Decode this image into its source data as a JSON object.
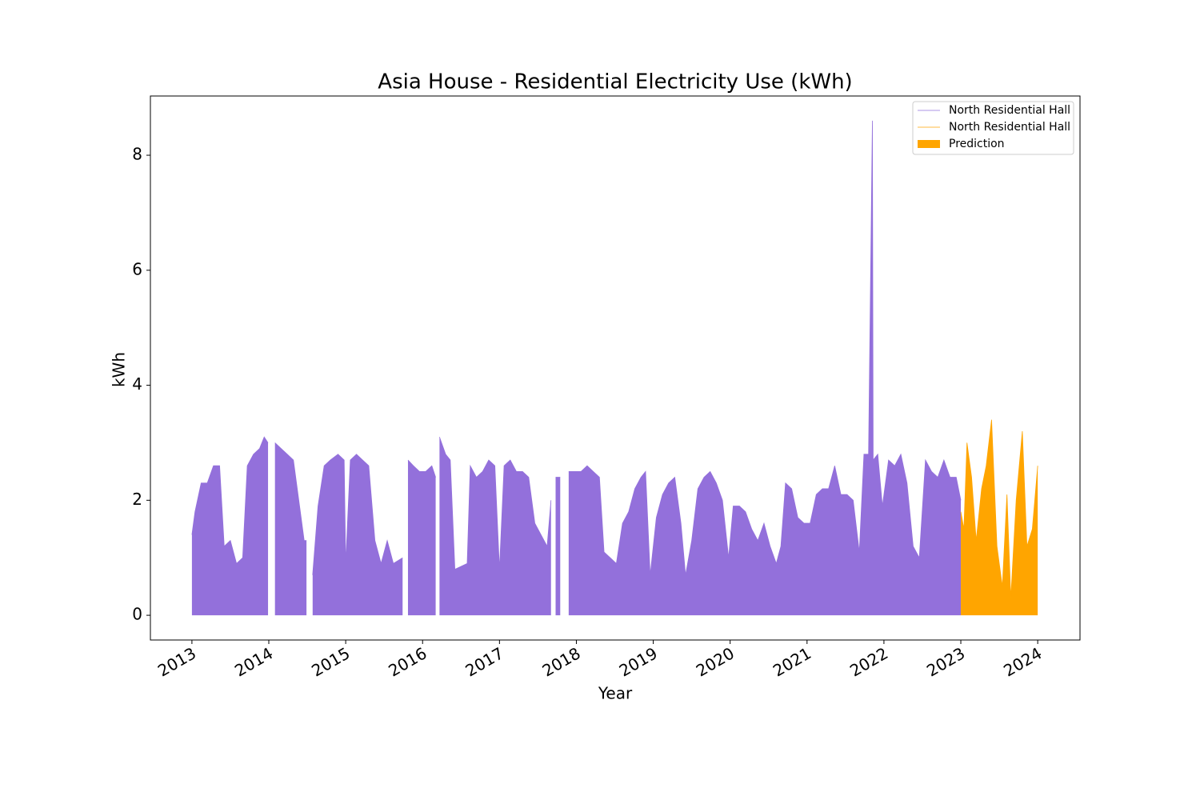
{
  "chart_data": {
    "type": "area",
    "title": "Asia House - Residential Electricity Use (kWh)",
    "xlabel": "Year",
    "ylabel": "kWh",
    "xlim": [
      2012.46,
      2024.55
    ],
    "xticks": [
      2013,
      2014,
      2015,
      2016,
      2017,
      2018,
      2019,
      2020,
      2021,
      2022,
      2023,
      2024
    ],
    "ylim": [
      -0.43,
      9.03
    ],
    "yticks": [
      0,
      2,
      4,
      6,
      8
    ],
    "legend": "upper right",
    "series": [
      {
        "name": "North Residential Hall",
        "color": "#9370db",
        "x": [
          2013.0,
          2013.04,
          2013.12,
          2013.2,
          2013.28,
          2013.36,
          2013.42,
          2013.5,
          2013.58,
          2013.66,
          2013.72,
          2013.8,
          2013.88,
          2013.94,
          2013.99,
          2014.03,
          2014.08,
          2014.16,
          2014.24,
          2014.32,
          2014.4,
          2014.46,
          2014.49,
          2014.53,
          2014.57,
          2014.64,
          2014.72,
          2014.8,
          2014.9,
          2014.98,
          2015.0,
          2015.06,
          2015.14,
          2015.22,
          2015.3,
          2015.38,
          2015.46,
          2015.54,
          2015.62,
          2015.74,
          2015.77,
          2015.81,
          2015.88,
          2015.96,
          2016.04,
          2016.12,
          2016.17,
          2016.19,
          2016.22,
          2016.3,
          2016.36,
          2016.42,
          2016.58,
          2016.62,
          2016.7,
          2016.78,
          2016.86,
          2016.94,
          2017.0,
          2017.06,
          2017.14,
          2017.22,
          2017.3,
          2017.38,
          2017.46,
          2017.54,
          2017.62,
          2017.67,
          2017.7,
          2017.73,
          2017.79,
          2017.85,
          2017.9,
          2017.98,
          2018.06,
          2018.14,
          2018.22,
          2018.3,
          2018.36,
          2018.44,
          2018.52,
          2018.6,
          2018.68,
          2018.76,
          2018.84,
          2018.9,
          2018.96,
          2019.04,
          2019.12,
          2019.2,
          2019.28,
          2019.36,
          2019.42,
          2019.5,
          2019.58,
          2019.66,
          2019.74,
          2019.82,
          2019.9,
          2019.98,
          2020.04,
          2020.12,
          2020.2,
          2020.28,
          2020.36,
          2020.44,
          2020.52,
          2020.6,
          2020.66,
          2020.72,
          2020.8,
          2020.88,
          2020.96,
          2021.04,
          2021.12,
          2021.2,
          2021.28,
          2021.36,
          2021.44,
          2021.52,
          2021.6,
          2021.68,
          2021.74,
          2021.8,
          2021.85,
          2021.86,
          2021.92,
          2021.98,
          2022.06,
          2022.14,
          2022.22,
          2022.3,
          2022.38,
          2022.46,
          2022.54,
          2022.62,
          2022.7,
          2022.78,
          2022.86,
          2022.94,
          2023.0
        ],
        "values": [
          1.4,
          1.8,
          2.3,
          2.3,
          2.6,
          2.6,
          1.2,
          1.3,
          0.9,
          1.0,
          2.6,
          2.8,
          2.9,
          3.1,
          3.0,
          null,
          3.0,
          2.9,
          2.8,
          2.7,
          1.9,
          1.3,
          1.3,
          null,
          0.7,
          1.9,
          2.6,
          2.7,
          2.8,
          2.7,
          0.9,
          2.7,
          2.8,
          2.7,
          2.6,
          1.3,
          0.9,
          1.3,
          0.9,
          1.0,
          null,
          2.7,
          2.6,
          2.5,
          2.5,
          2.6,
          2.4,
          null,
          3.1,
          2.8,
          2.7,
          0.8,
          0.9,
          2.6,
          2.4,
          2.5,
          2.7,
          2.6,
          0.8,
          2.6,
          2.7,
          2.5,
          2.5,
          2.4,
          1.6,
          1.4,
          1.2,
          2.0,
          null,
          2.4,
          2.4,
          null,
          2.5,
          2.5,
          2.5,
          2.6,
          2.5,
          2.4,
          1.1,
          1.0,
          0.9,
          1.6,
          1.8,
          2.2,
          2.4,
          2.5,
          0.7,
          1.7,
          2.1,
          2.3,
          2.4,
          1.6,
          0.7,
          1.3,
          2.2,
          2.4,
          2.5,
          2.3,
          2.0,
          1.0,
          1.9,
          1.9,
          1.8,
          1.5,
          1.3,
          1.6,
          1.2,
          0.9,
          1.2,
          2.3,
          2.2,
          1.7,
          1.6,
          1.6,
          2.1,
          2.2,
          2.2,
          2.6,
          2.1,
          2.1,
          2.0,
          1.1,
          2.8,
          2.8,
          8.6,
          2.7,
          2.8,
          1.9,
          2.7,
          2.6,
          2.8,
          2.3,
          1.2,
          1.0,
          2.7,
          2.5,
          2.4,
          2.7,
          2.4,
          2.4,
          2.0
        ]
      },
      {
        "name": "North Residential Hall",
        "color": "#ffa500",
        "x": [
          2023.0,
          2023.04,
          2023.08,
          2023.14,
          2023.2,
          2023.27,
          2023.33,
          2023.4,
          2023.47,
          2023.54,
          2023.6,
          2023.65,
          2023.72,
          2023.8,
          2023.86,
          2023.93,
          2024.0
        ],
        "values": [
          1.8,
          1.5,
          3.0,
          2.4,
          1.3,
          2.2,
          2.6,
          3.4,
          1.2,
          0.5,
          2.1,
          0.3,
          2.0,
          3.2,
          1.2,
          1.5,
          2.6
        ]
      }
    ],
    "fill_legend": {
      "name": "Prediction",
      "color": "#ffa500"
    }
  }
}
